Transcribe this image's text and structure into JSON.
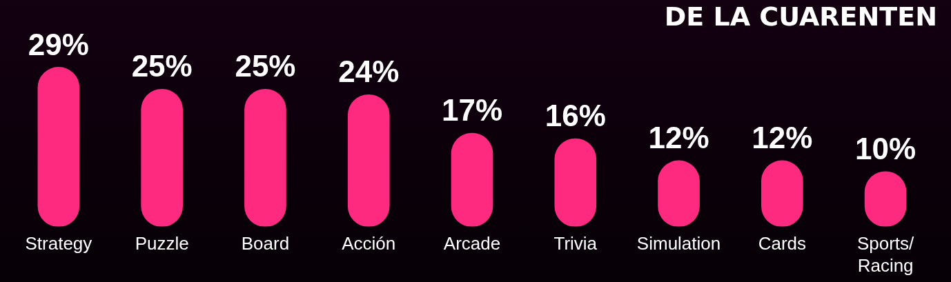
{
  "chart_data": {
    "type": "bar",
    "title": "DE LA CUARENTEN",
    "categories": [
      "Strategy",
      "Puzzle",
      "Board",
      "Acción",
      "Arcade",
      "Trivia",
      "Simulation",
      "Cards",
      "Sports/Racing"
    ],
    "values": [
      29,
      25,
      25,
      24,
      17,
      16,
      12,
      12,
      10
    ],
    "color": "#fe2a80",
    "data_labels": true,
    "value_labels": [
      "29%",
      "25%",
      "25%",
      "24%",
      "17%",
      "16%",
      "12%",
      "12%",
      "10%"
    ],
    "legend": false
  }
}
